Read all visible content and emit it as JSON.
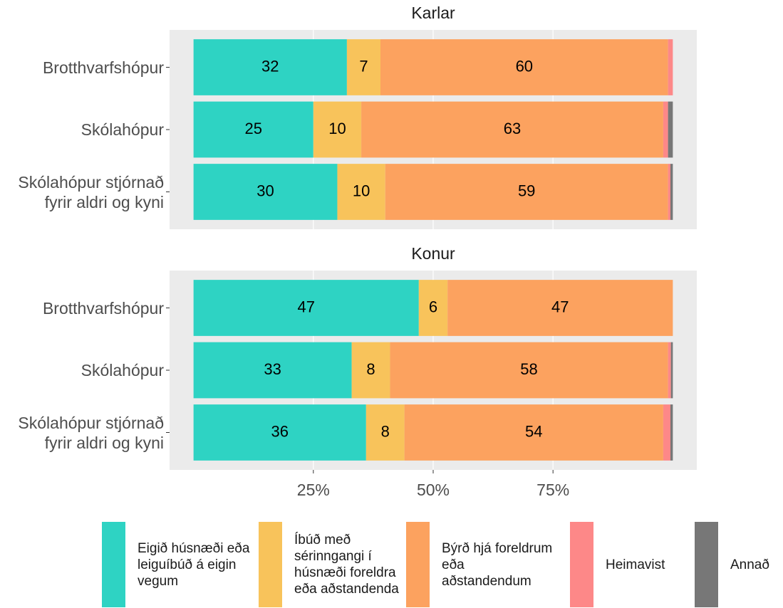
{
  "chart_data": {
    "type": "stacked-barh",
    "xlim": [
      -5,
      105
    ],
    "xticks": [
      {
        "value": 25,
        "label": "25%"
      },
      {
        "value": 50,
        "label": "50%"
      },
      {
        "value": 75,
        "label": "75%"
      }
    ],
    "grid": true,
    "legend": "bottom",
    "series": [
      {
        "name": "Eigið húsnæði eða leiguíbúð á eigin vegum",
        "color": "#2ed3c3"
      },
      {
        "name": "Íbúð með sérinngangi í húsnæði foreldra eða aðstandenda",
        "color": "#f8c35b"
      },
      {
        "name": "Býrð hjá foreldrum eða aðstandendum",
        "color": "#fca25f"
      },
      {
        "name": "Heimavist",
        "color": "#fd8888"
      },
      {
        "name": "Annað",
        "color": "#777777"
      }
    ],
    "facets": [
      {
        "title": "Karlar",
        "categories": [
          "Brotthvarfshópur",
          "Skólahópur",
          "Skólahópur stjórnað fyrir aldri og kyni"
        ],
        "series": [
          {
            "values": [
              32,
              25,
              30
            ]
          },
          {
            "values": [
              7,
              10,
              10
            ]
          },
          {
            "values": [
              60,
              63,
              59
            ]
          },
          {
            "values": [
              1,
              1,
              0.5
            ]
          },
          {
            "values": [
              0,
              1,
              0.5
            ]
          }
        ]
      },
      {
        "title": "Konur",
        "categories": [
          "Brotthvarfshópur",
          "Skólahópur",
          "Skólahópur stjórnað fyrir aldri og kyni"
        ],
        "series": [
          {
            "values": [
              47,
              33,
              36
            ]
          },
          {
            "values": [
              6,
              8,
              8
            ]
          },
          {
            "values": [
              47,
              58,
              54
            ]
          },
          {
            "values": [
              0,
              0.6,
              1.5
            ]
          },
          {
            "values": [
              0,
              0.4,
              0.5
            ]
          }
        ]
      }
    ]
  }
}
